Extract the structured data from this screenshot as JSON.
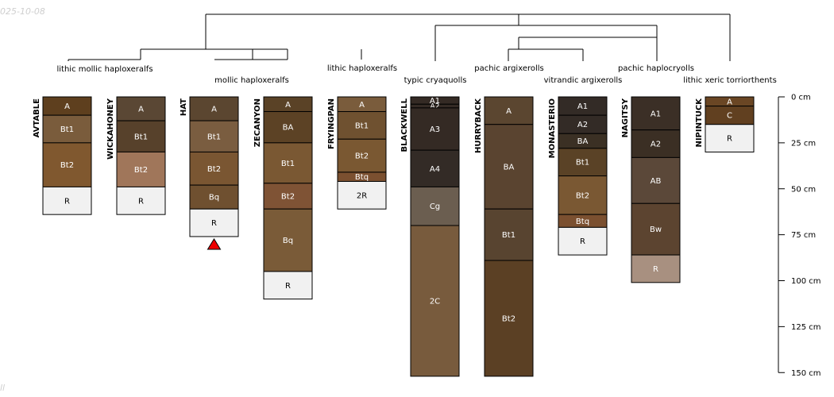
{
  "watermark": {
    "date": "025-10-08",
    "bottom": "ll"
  },
  "chart_data": {
    "type": "soil-profile-sketch",
    "depth_unit": "cm",
    "depth_axis": {
      "min": 0,
      "max": 150,
      "ticks": [
        0,
        25,
        50,
        75,
        100,
        125,
        150
      ],
      "labels": [
        "0 cm",
        "25 cm",
        "50 cm",
        "75 cm",
        "100 cm",
        "125 cm",
        "150 cm"
      ]
    },
    "groups": [
      {
        "label": "lithic mollic haploxeralfs",
        "members": [
          "AVTABLE",
          "WICKAHONEY"
        ]
      },
      {
        "label": "mollic haploxeralfs",
        "members": [
          "HAT",
          "ZECANYON"
        ]
      },
      {
        "label": "lithic haploxeralfs",
        "members": [
          "FRYINGPAN"
        ]
      },
      {
        "label": "typic cryaquolls",
        "members": [
          "BLACKWELL"
        ]
      },
      {
        "label": "pachic argixerolls",
        "members": [
          "HURRYBACK"
        ]
      },
      {
        "label": "vitrandic argixerolls",
        "members": [
          "MONASTERIO"
        ]
      },
      {
        "label": "pachic haplocryolls",
        "members": [
          "NAGITSY"
        ]
      },
      {
        "label": "lithic xeric torriorthents",
        "members": [
          "NIPINTUCK"
        ]
      }
    ],
    "profiles": [
      {
        "name": "AVTABLE",
        "marker": false,
        "horizons": [
          {
            "name": "A",
            "top": 0,
            "bottom": 10,
            "color": "#5e3f1e"
          },
          {
            "name": "Bt1",
            "top": 10,
            "bottom": 25,
            "color": "#7a5c3c"
          },
          {
            "name": "Bt2",
            "top": 25,
            "bottom": 49,
            "color": "#80582f"
          },
          {
            "name": "R",
            "top": 49,
            "bottom": 64,
            "color": "#f1f1f1"
          }
        ]
      },
      {
        "name": "WICKAHONEY",
        "marker": false,
        "horizons": [
          {
            "name": "A",
            "top": 0,
            "bottom": 13,
            "color": "#5a4734"
          },
          {
            "name": "Bt1",
            "top": 13,
            "bottom": 30,
            "color": "#57412b"
          },
          {
            "name": "Bt2",
            "top": 30,
            "bottom": 49,
            "color": "#a0765a"
          },
          {
            "name": "R",
            "top": 49,
            "bottom": 64,
            "color": "#f1f1f1"
          }
        ]
      },
      {
        "name": "HAT",
        "marker": true,
        "horizons": [
          {
            "name": "A",
            "top": 0,
            "bottom": 13,
            "color": "#5b4630"
          },
          {
            "name": "Bt1",
            "top": 13,
            "bottom": 30,
            "color": "#7a5d40"
          },
          {
            "name": "Bt2",
            "top": 30,
            "bottom": 48,
            "color": "#7a5632"
          },
          {
            "name": "Bq",
            "top": 48,
            "bottom": 61,
            "color": "#6f5030"
          },
          {
            "name": "R",
            "top": 61,
            "bottom": 76,
            "color": "#f1f1f1"
          }
        ]
      },
      {
        "name": "ZECANYON",
        "marker": false,
        "horizons": [
          {
            "name": "A",
            "top": 0,
            "bottom": 8,
            "color": "#5a4226"
          },
          {
            "name": "BA",
            "top": 8,
            "bottom": 25,
            "color": "#5c4225"
          },
          {
            "name": "Bt1",
            "top": 25,
            "bottom": 47,
            "color": "#7a5833"
          },
          {
            "name": "Bt2",
            "top": 47,
            "bottom": 61,
            "color": "#7f5335"
          },
          {
            "name": "Bq",
            "top": 61,
            "bottom": 95,
            "color": "#7a5b38"
          },
          {
            "name": "R",
            "top": 95,
            "bottom": 110,
            "color": "#f1f1f1"
          }
        ]
      },
      {
        "name": "FRYINGPAN",
        "marker": false,
        "horizons": [
          {
            "name": "A",
            "top": 0,
            "bottom": 8,
            "color": "#7a5c3c"
          },
          {
            "name": "Bt1",
            "top": 8,
            "bottom": 23,
            "color": "#6f5130"
          },
          {
            "name": "Bt2",
            "top": 23,
            "bottom": 41,
            "color": "#7a5832"
          },
          {
            "name": "Btq",
            "top": 41,
            "bottom": 46,
            "color": "#7b5030"
          },
          {
            "name": "2R",
            "top": 46,
            "bottom": 61,
            "color": "#f1f1f1"
          }
        ]
      },
      {
        "name": "BLACKWELL",
        "marker": false,
        "horizons": [
          {
            "name": "A1",
            "top": 0,
            "bottom": 4,
            "color": "#342a24"
          },
          {
            "name": "A2",
            "top": 4,
            "bottom": 6,
            "color": "#342a24"
          },
          {
            "name": "A3",
            "top": 6,
            "bottom": 29,
            "color": "#342a24"
          },
          {
            "name": "A4",
            "top": 29,
            "bottom": 49,
            "color": "#332b26"
          },
          {
            "name": "Cg",
            "top": 49,
            "bottom": 70,
            "color": "#6b5e50"
          },
          {
            "name": "2C",
            "top": 70,
            "bottom": 152,
            "color": "#785b3d"
          }
        ]
      },
      {
        "name": "HURRYBACK",
        "marker": false,
        "horizons": [
          {
            "name": "A",
            "top": 0,
            "bottom": 15,
            "color": "#5b4630"
          },
          {
            "name": "BA",
            "top": 15,
            "bottom": 61,
            "color": "#5a4430"
          },
          {
            "name": "Bt1",
            "top": 61,
            "bottom": 89,
            "color": "#584430"
          },
          {
            "name": "Bt2",
            "top": 89,
            "bottom": 152,
            "color": "#5b4024"
          }
        ]
      },
      {
        "name": "MONASTERIO",
        "marker": false,
        "horizons": [
          {
            "name": "A1",
            "top": 0,
            "bottom": 10,
            "color": "#332b26"
          },
          {
            "name": "A2",
            "top": 10,
            "bottom": 20,
            "color": "#332b26"
          },
          {
            "name": "BA",
            "top": 20,
            "bottom": 28,
            "color": "#3b3024"
          },
          {
            "name": "Bt1",
            "top": 28,
            "bottom": 43,
            "color": "#5a4226"
          },
          {
            "name": "Bt2",
            "top": 43,
            "bottom": 64,
            "color": "#7a5833"
          },
          {
            "name": "Btq",
            "top": 64,
            "bottom": 71,
            "color": "#7b5030"
          },
          {
            "name": "R",
            "top": 71,
            "bottom": 86,
            "color": "#f1f1f1"
          }
        ]
      },
      {
        "name": "NAGITSY",
        "marker": false,
        "horizons": [
          {
            "name": "A1",
            "top": 0,
            "bottom": 18,
            "color": "#3b2f26"
          },
          {
            "name": "A2",
            "top": 18,
            "bottom": 33,
            "color": "#3b2f24"
          },
          {
            "name": "AB",
            "top": 33,
            "bottom": 58,
            "color": "#5b4839"
          },
          {
            "name": "Bw",
            "top": 58,
            "bottom": 86,
            "color": "#5c4430"
          },
          {
            "name": "R",
            "top": 86,
            "bottom": 101,
            "color": "#a89080"
          }
        ]
      },
      {
        "name": "NIPINTUCK",
        "marker": false,
        "horizons": [
          {
            "name": "A",
            "top": 0,
            "bottom": 5,
            "color": "#6a4624"
          },
          {
            "name": "C",
            "top": 5,
            "bottom": 15,
            "color": "#614020"
          },
          {
            "name": "R",
            "top": 15,
            "bottom": 30,
            "color": "#f1f1f1"
          }
        ]
      }
    ]
  }
}
